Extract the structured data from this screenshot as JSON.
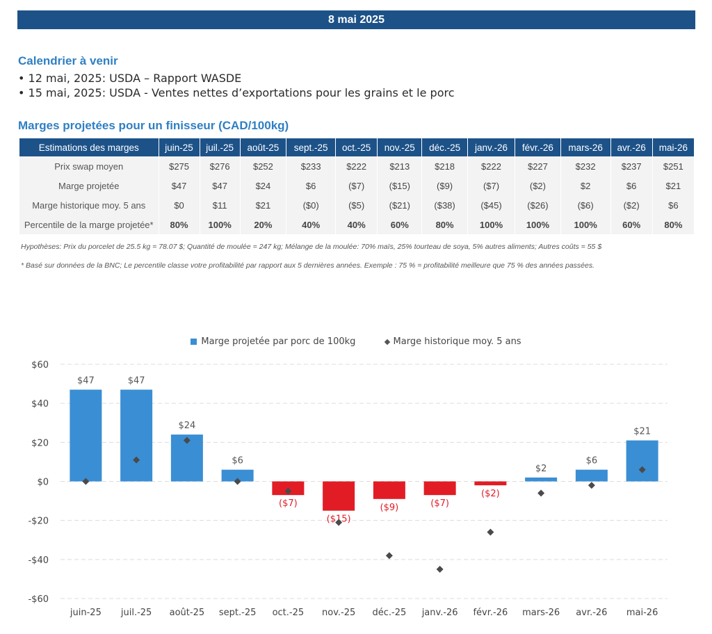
{
  "header": {
    "date": "8 mai 2025"
  },
  "calendar": {
    "title": "Calendrier à venir",
    "items": [
      "12 mai, 2025: USDA – Rapport WASDE",
      "15 mai, 2025: USDA - Ventes nettes d’exportations pour les grains et le porc"
    ]
  },
  "margins_table": {
    "title": "Marges projetées pour un finisseur (CAD/100kg)",
    "corner_label": "Estimations des marges",
    "months": [
      "juin-25",
      "juil.-25",
      "août-25",
      "sept.-25",
      "oct.-25",
      "nov.-25",
      "déc.-25",
      "janv.-26",
      "févr.-26",
      "mars-26",
      "avr.-26",
      "mai-26"
    ],
    "rows": [
      {
        "label": "Prix swap moyen",
        "values": [
          "$275",
          "$276",
          "$252",
          "$233",
          "$222",
          "$213",
          "$218",
          "$222",
          "$227",
          "$232",
          "$237",
          "$251"
        ]
      },
      {
        "label": "Marge projetée",
        "values": [
          "$47",
          "$47",
          "$24",
          "$6",
          "($7)",
          "($15)",
          "($9)",
          "($7)",
          "($2)",
          "$2",
          "$6",
          "$21"
        ]
      },
      {
        "label": "Marge historique moy. 5 ans",
        "values": [
          "$0",
          "$11",
          "$21",
          "($0)",
          "($5)",
          "($21)",
          "($38)",
          "($45)",
          "($26)",
          "($6)",
          "($2)",
          "$6"
        ]
      },
      {
        "label": "Percentile de la marge projetée*",
        "values": [
          "80%",
          "100%",
          "20%",
          "40%",
          "40%",
          "60%",
          "80%",
          "100%",
          "100%",
          "100%",
          "60%",
          "80%"
        ]
      }
    ],
    "hypotheses": "Hypothèses: Prix du porcelet de 25.5 kg = 78.07 $; Quantité de moulée = 247 kg; Mélange de la moulée: 70% maïs, 25% tourteau de soya, 5% autres aliments; Autres coûts = 55 $",
    "footnote": "* Basé sur données de la BNC; Le percentile classe votre profitabilité par rapport aux 5 dernières années. Exemple : 75 % = profitabilité meilleure que 75 % des années passées."
  },
  "chart_data": {
    "type": "bar",
    "categories": [
      "juin-25",
      "juil.-25",
      "août-25",
      "sept.-25",
      "oct.-25",
      "nov.-25",
      "déc.-25",
      "janv.-26",
      "févr.-26",
      "mars-26",
      "avr.-26",
      "mai-26"
    ],
    "series": [
      {
        "name": "Marge projetée par porc de 100kg",
        "type": "bar",
        "values": [
          47,
          47,
          24,
          6,
          -7,
          -15,
          -9,
          -7,
          -2,
          2,
          6,
          21
        ],
        "labels": [
          "$47",
          "$47",
          "$24",
          "$6",
          "($7)",
          "($15)",
          "($9)",
          "($7)",
          "($2)",
          "$2",
          "$6",
          "$21"
        ]
      },
      {
        "name": "Marge historique moy. 5 ans",
        "type": "scatter",
        "values": [
          0,
          11,
          21,
          0,
          -5,
          -21,
          -38,
          -45,
          -26,
          -6,
          -2,
          6
        ]
      }
    ],
    "ylim": [
      -60,
      60
    ],
    "yticks": [
      60,
      40,
      20,
      0,
      -20,
      -40,
      -60
    ],
    "ytick_labels": [
      "$60",
      "$40",
      "$20",
      "$0",
      "-$20",
      "-$40",
      "-$60"
    ],
    "colors": {
      "positive": "#3a8ed4",
      "negative": "#e21c25",
      "marker": "#4a4a4a"
    },
    "legend": "top",
    "grid": true
  }
}
